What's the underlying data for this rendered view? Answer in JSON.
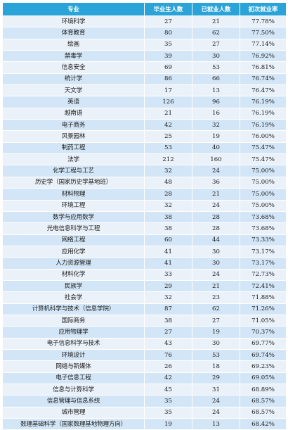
{
  "table": {
    "headers": [
      "专业",
      "毕业生人数",
      "已就业人数",
      "初次就业率"
    ],
    "rows": [
      [
        "环境科学",
        "27",
        "21",
        "77.78%"
      ],
      [
        "体育教育",
        "80",
        "62",
        "77.50%"
      ],
      [
        "绘画",
        "35",
        "27",
        "77.14%"
      ],
      [
        "禁毒学",
        "39",
        "30",
        "76.92%"
      ],
      [
        "信息安全",
        "69",
        "53",
        "76.81%"
      ],
      [
        "统计学",
        "86",
        "66",
        "76.74%"
      ],
      [
        "天文学",
        "17",
        "13",
        "76.47%"
      ],
      [
        "英语",
        "126",
        "96",
        "76.19%"
      ],
      [
        "越南语",
        "21",
        "16",
        "76.19%"
      ],
      [
        "电子商务",
        "42",
        "32",
        "76.19%"
      ],
      [
        "风景园林",
        "25",
        "19",
        "76.00%"
      ],
      [
        "制药工程",
        "53",
        "40",
        "75.47%"
      ],
      [
        "法学",
        "212",
        "160",
        "75.47%"
      ],
      [
        "化学工程与工艺",
        "32",
        "24",
        "75.00%"
      ],
      [
        "历史学（国家历史学基地班）",
        "48",
        "36",
        "75.00%"
      ],
      [
        "材料物理",
        "28",
        "21",
        "75.00%"
      ],
      [
        "环境工程",
        "32",
        "24",
        "75.00%"
      ],
      [
        "数学与应用数学",
        "38",
        "28",
        "73.68%"
      ],
      [
        "光电信息科学与工程",
        "38",
        "28",
        "73.68%"
      ],
      [
        "网络工程",
        "60",
        "44",
        "73.33%"
      ],
      [
        "应用化学",
        "41",
        "30",
        "73.17%"
      ],
      [
        "人力资源管理",
        "41",
        "30",
        "73.17%"
      ],
      [
        "材料化学",
        "33",
        "24",
        "72.73%"
      ],
      [
        "民族学",
        "29",
        "21",
        "72.41%"
      ],
      [
        "社会学",
        "32",
        "23",
        "71.88%"
      ],
      [
        "计算机科学与技术（信息学院）",
        "87",
        "62",
        "71.26%"
      ],
      [
        "国际商务",
        "38",
        "27",
        "71.05%"
      ],
      [
        "应用物理学",
        "27",
        "19",
        "70.37%"
      ],
      [
        "电子信息科学与技术",
        "43",
        "30",
        "69.77%"
      ],
      [
        "环境设计",
        "76",
        "53",
        "69.74%"
      ],
      [
        "网络与新媒体",
        "26",
        "18",
        "69.23%"
      ],
      [
        "电子信息工程",
        "42",
        "29",
        "69.05%"
      ],
      [
        "信息与计算科学",
        "45",
        "31",
        "68.89%"
      ],
      [
        "信息管理与信息系统",
        "35",
        "24",
        "68.57%"
      ],
      [
        "城市管理",
        "35",
        "24",
        "68.57%"
      ],
      [
        "数理基础科学（国家数理基地物理方向）",
        "19",
        "13",
        "68.42%"
      ]
    ]
  }
}
